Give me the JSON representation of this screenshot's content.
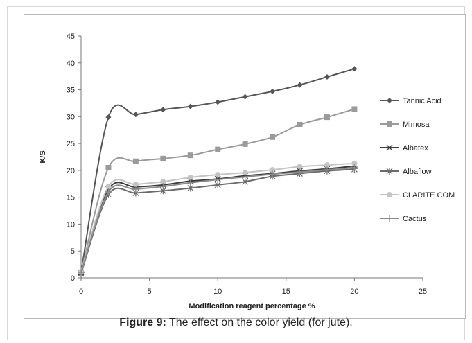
{
  "caption": {
    "label": "Figure 9:",
    "text": " The effect on the color yield (for jute)."
  },
  "chart_data": {
    "type": "line",
    "title": "",
    "xlabel": "Modification reagent percentage %",
    "ylabel": "K/S",
    "xlim": [
      0,
      25
    ],
    "ylim": [
      0,
      45
    ],
    "xticks": [
      0,
      5,
      10,
      15,
      20,
      25
    ],
    "yticks": [
      0,
      5,
      10,
      15,
      20,
      25,
      30,
      35,
      40,
      45
    ],
    "grid": false,
    "smooth": true,
    "legend": "right",
    "x": [
      0,
      2,
      4,
      6,
      8,
      10,
      12,
      14,
      16,
      18,
      20
    ],
    "series": [
      {
        "name": "Tannic Acid",
        "marker": "diamond",
        "color": "#555555",
        "values": [
          1.0,
          29.9,
          30.4,
          31.3,
          31.9,
          32.7,
          33.7,
          34.7,
          35.9,
          37.4,
          38.9
        ]
      },
      {
        "name": "Mimosa",
        "marker": "square",
        "color": "#9a9a9a",
        "values": [
          1.0,
          20.5,
          21.7,
          22.2,
          22.8,
          23.9,
          24.9,
          26.2,
          28.5,
          29.9,
          31.4
        ]
      },
      {
        "name": "Albatex",
        "marker": "x",
        "color": "#3c3c3c",
        "values": [
          1.0,
          16.5,
          16.9,
          17.3,
          18.0,
          18.4,
          19.0,
          19.4,
          19.9,
          20.3,
          20.8
        ]
      },
      {
        "name": "Albaflow",
        "marker": "star",
        "color": "#6a6a6a",
        "values": [
          0.8,
          15.5,
          15.8,
          16.2,
          16.7,
          17.3,
          17.9,
          18.9,
          19.4,
          19.9,
          20.2
        ]
      },
      {
        "name": "CLARITE COM",
        "marker": "circle",
        "color": "#c4c4c4",
        "values": [
          1.2,
          17.0,
          17.4,
          17.9,
          18.7,
          19.2,
          19.6,
          20.1,
          20.7,
          21.0,
          21.3
        ]
      },
      {
        "name": "Cactus",
        "marker": "plus",
        "color": "#8a8a8a",
        "values": [
          1.0,
          16.0,
          16.5,
          17.0,
          17.7,
          18.3,
          18.8,
          19.3,
          19.7,
          20.1,
          20.5
        ]
      }
    ]
  }
}
